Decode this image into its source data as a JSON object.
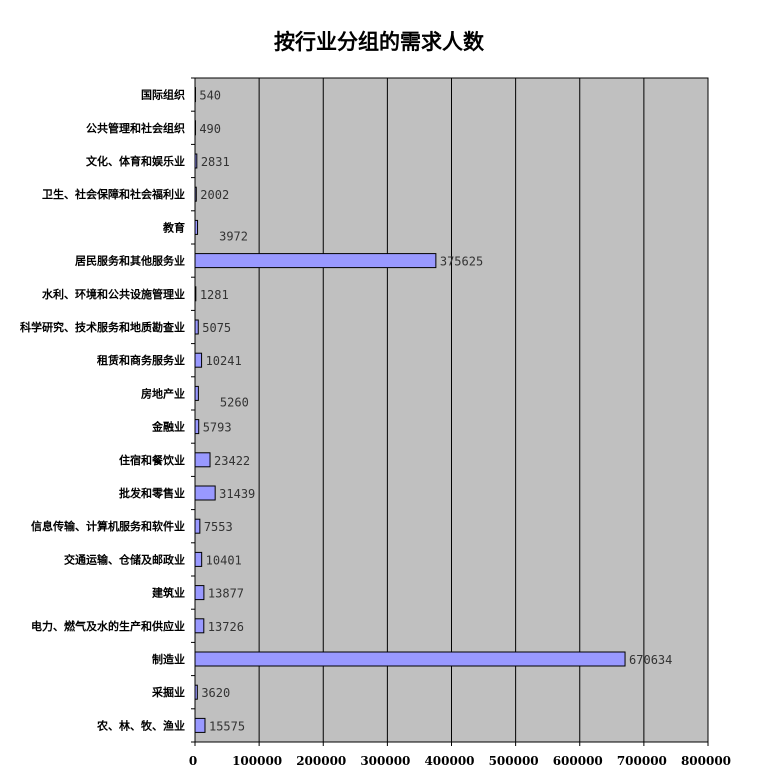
{
  "chart_data": {
    "type": "bar",
    "orientation": "horizontal",
    "title": "按行业分组的需求人数",
    "categories": [
      "国际组织",
      "公共管理和社会组织",
      "文化、体育和娱乐业",
      "卫生、社会保障和社会福利业",
      "教育",
      "居民服务和其他服务业",
      "水利、环境和公共设施管理业",
      "科学研究、技术服务和地质勘查业",
      "租赁和商务服务业",
      "房地产业",
      "金融业",
      "住宿和餐饮业",
      "批发和零售业",
      "信息传输、计算机服务和软件业",
      "交通运输、仓储及邮政业",
      "建筑业",
      "电力、燃气及水的生产和供应业",
      "制造业",
      "采掘业",
      "农、林、牧、渔业"
    ],
    "values": [
      540,
      490,
      2831,
      2002,
      3972,
      375625,
      1281,
      5075,
      10241,
      5260,
      5793,
      23422,
      31439,
      7553,
      10401,
      13877,
      13726,
      670634,
      3620,
      15575
    ],
    "xlim": [
      0,
      800000
    ],
    "xticks": [
      0,
      100000,
      200000,
      300000,
      400000,
      500000,
      600000,
      700000,
      800000
    ],
    "grid": true,
    "legend": "none",
    "colors": {
      "bar": "#9999ff",
      "plot_bg": "#c0c0c0",
      "grid": "#000000"
    }
  }
}
